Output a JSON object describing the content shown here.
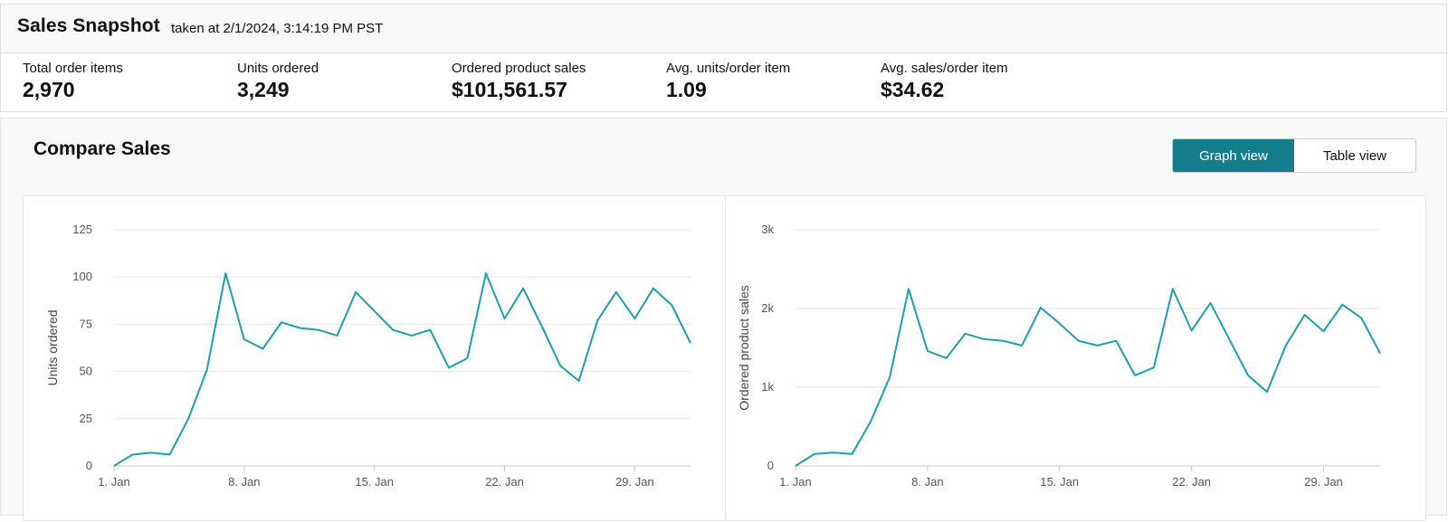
{
  "snapshot": {
    "title": "Sales Snapshot",
    "timestamp": "taken at 2/1/2024, 3:14:19 PM PST",
    "metrics": [
      {
        "label": "Total order items",
        "value": "2,970"
      },
      {
        "label": "Units ordered",
        "value": "3,249"
      },
      {
        "label": "Ordered product sales",
        "value": "$101,561.57"
      },
      {
        "label": "Avg. units/order item",
        "value": "1.09"
      },
      {
        "label": "Avg. sales/order item",
        "value": "$34.62"
      }
    ]
  },
  "compare": {
    "title": "Compare Sales",
    "graph_view_label": "Graph view",
    "table_view_label": "Table view",
    "active_view": "graph"
  },
  "colors": {
    "accent": "#137d8b",
    "series": "#1aa0a6"
  },
  "chart_data": [
    {
      "type": "line",
      "ylabel": "Units ordered",
      "xlabel": "",
      "ylim": [
        0,
        125
      ],
      "yticks": [
        0,
        25,
        50,
        75,
        100,
        125
      ],
      "ytick_labels": [
        "0",
        "25",
        "50",
        "75",
        "100",
        "125"
      ],
      "xticks": [
        1,
        8,
        15,
        22,
        29
      ],
      "xtick_labels": [
        "1. Jan",
        "8. Jan",
        "15. Jan",
        "22. Jan",
        "29. Jan"
      ],
      "xlim": [
        1,
        32
      ],
      "grid": true,
      "series": [
        {
          "x": [
            1,
            2,
            3,
            4,
            5,
            6,
            7,
            8,
            9,
            10,
            11,
            12,
            13,
            14,
            15,
            16,
            17,
            18,
            19,
            20,
            21,
            22,
            23,
            24,
            25,
            26,
            27,
            28,
            29,
            30,
            31,
            32
          ],
          "values": [
            0,
            6,
            7,
            6,
            25,
            51,
            102,
            67,
            62,
            76,
            73,
            72,
            69,
            92,
            82,
            72,
            69,
            72,
            52,
            57,
            102,
            78,
            94,
            74,
            53,
            45,
            77,
            92,
            78,
            94,
            85,
            65
          ]
        }
      ]
    },
    {
      "type": "line",
      "ylabel": "Ordered product sales",
      "xlabel": "",
      "ylim": [
        0,
        3000
      ],
      "yticks": [
        0,
        1000,
        2000,
        3000
      ],
      "ytick_labels": [
        "0",
        "1k",
        "2k",
        "3k"
      ],
      "xticks": [
        1,
        8,
        15,
        22,
        29
      ],
      "xtick_labels": [
        "1. Jan",
        "8. Jan",
        "15. Jan",
        "22. Jan",
        "29. Jan"
      ],
      "xlim": [
        1,
        32
      ],
      "grid": true,
      "series": [
        {
          "x": [
            1,
            2,
            3,
            4,
            5,
            6,
            7,
            8,
            9,
            10,
            11,
            12,
            13,
            14,
            15,
            16,
            17,
            18,
            19,
            20,
            21,
            22,
            23,
            24,
            25,
            26,
            27,
            28,
            29,
            30,
            31,
            32
          ],
          "values": [
            0,
            150,
            170,
            150,
            570,
            1130,
            2250,
            1460,
            1370,
            1680,
            1610,
            1590,
            1530,
            2010,
            1810,
            1590,
            1530,
            1590,
            1150,
            1250,
            2250,
            1720,
            2070,
            1610,
            1150,
            940,
            1530,
            1920,
            1710,
            2050,
            1880,
            1430
          ]
        }
      ]
    }
  ]
}
